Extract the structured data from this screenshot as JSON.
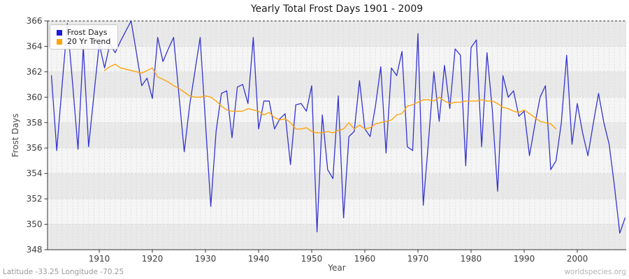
{
  "title": "Yearly Total Frost Days 1901 - 2009",
  "axes": {
    "ylabel": "Frost Days",
    "xlabel": "Year",
    "yticks": [
      348,
      350,
      352,
      354,
      356,
      358,
      360,
      362,
      364,
      366
    ],
    "xticks": [
      1910,
      1920,
      1930,
      1940,
      1950,
      1960,
      1970,
      1980,
      1990,
      2000
    ],
    "ylim": [
      348,
      366
    ],
    "xlim_years": [
      1901,
      2009
    ]
  },
  "legend": {
    "items": [
      {
        "label": "Frost Days",
        "color": "#1a1ae0"
      },
      {
        "label": "20 Yr Trend",
        "color": "#ffa500"
      }
    ]
  },
  "footer": {
    "left": "Latitude -33.25 Longitude -70.25",
    "right": "worldspecies.org"
  },
  "style": {
    "band_dark": "#e9e9e9",
    "band_light": "#f5f5f5",
    "grid_color": "#d9d9d9",
    "axis_color": "#333333",
    "top_border_color": "#2b2b2b",
    "tick_label_color": "#3c3c3c"
  },
  "chart_data": {
    "type": "line",
    "title": "Yearly Total Frost Days 1901 - 2009",
    "xlabel": "Year",
    "ylabel": "Frost Days",
    "ylim": [
      348,
      366
    ],
    "xlim": [
      1901,
      2009
    ],
    "grid": "dashed vertical per year, dashed horizontal every 2, striped bands every 2",
    "legend_position": "upper left",
    "series": [
      {
        "name": "Frost Days",
        "color": "#3434d0",
        "x_start": 1911,
        "x_step": 1,
        "note": "x_start of this series is 1901; see x_start field below",
        "values": []
      },
      {
        "name": "20 Yr Trend",
        "color": "#ffa40e",
        "x_start": 1911,
        "x_step": 1,
        "values": []
      }
    ],
    "frost_days": {
      "name": "Frost Days",
      "color": "#3434d0",
      "x_start": 1901,
      "x_step": 1,
      "values": [
        361.7,
        355.8,
        360.9,
        365.8,
        361.0,
        355.9,
        364.0,
        356.1,
        360.2,
        364.2,
        362.3,
        364.2,
        363.5,
        364.4,
        365.2,
        366.0,
        363.5,
        360.9,
        361.5,
        359.9,
        364.7,
        362.8,
        363.8,
        364.7,
        360.2,
        355.7,
        359.3,
        362.0,
        364.7,
        358.0,
        351.4,
        357.3,
        360.3,
        360.5,
        356.8,
        360.8,
        361.0,
        359.5,
        364.7,
        357.5,
        359.7,
        359.7,
        357.5,
        358.3,
        358.7,
        354.7,
        359.4,
        359.5,
        358.9,
        360.9,
        349.4,
        358.6,
        354.3,
        353.6,
        360.1,
        350.5,
        356.9,
        357.3,
        361.3,
        357.5,
        356.9,
        359.3,
        362.4,
        355.6,
        362.3,
        361.7,
        363.6,
        356.1,
        355.8,
        365.0,
        351.5,
        356.6,
        362.0,
        358.1,
        362.5,
        359.1,
        363.8,
        363.3,
        354.6,
        363.9,
        364.5,
        356.1,
        363.5,
        359.0,
        352.6,
        361.7,
        360.0,
        360.5,
        358.5,
        358.9,
        355.4,
        357.8,
        360.0,
        360.9,
        354.3,
        355.0,
        358.0,
        363.3,
        356.3,
        359.5,
        357.2,
        355.4,
        357.9,
        360.3,
        358.0,
        356.3,
        353.0,
        349.3,
        350.5
      ]
    },
    "trend": {
      "name": "20 Yr Trend",
      "color": "#ffa40e",
      "x_start": 1911,
      "x_step": 1,
      "values": [
        362.1,
        362.4,
        362.6,
        362.3,
        362.2,
        362.1,
        362.0,
        361.9,
        362.1,
        362.3,
        361.6,
        361.4,
        361.2,
        360.9,
        360.7,
        360.4,
        360.1,
        360.0,
        360.0,
        360.1,
        360.0,
        359.7,
        359.3,
        359.0,
        358.9,
        358.9,
        358.9,
        359.1,
        359.0,
        358.9,
        358.6,
        358.8,
        358.4,
        358.2,
        358.3,
        358.0,
        357.5,
        357.5,
        357.6,
        357.3,
        357.2,
        357.2,
        357.3,
        357.2,
        357.4,
        357.5,
        358.0,
        357.5,
        357.8,
        357.5,
        357.6,
        357.9,
        358.0,
        358.1,
        358.2,
        358.6,
        358.7,
        359.3,
        359.4,
        359.6,
        359.8,
        359.8,
        359.7,
        360.0,
        359.7,
        359.5,
        359.6,
        359.6,
        359.7,
        359.7,
        359.7,
        359.8,
        359.7,
        359.7,
        359.5,
        359.2,
        359.1,
        358.9,
        358.8,
        359.0,
        358.7,
        358.4,
        358.1,
        358.0,
        357.9,
        357.5
      ]
    }
  }
}
